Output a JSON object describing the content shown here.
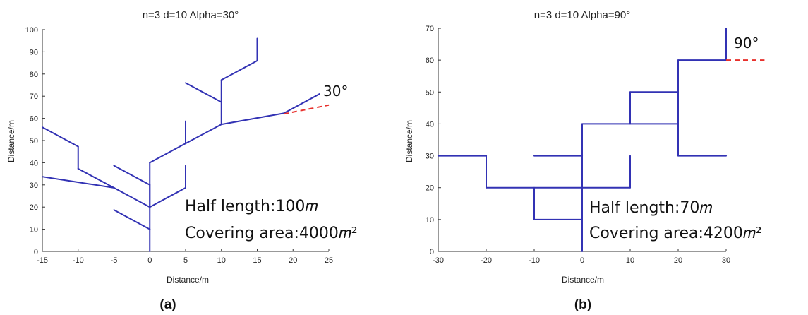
{
  "colors": {
    "line": "#3232b4",
    "reference": "#e8302c",
    "axis": "#333333"
  },
  "chart_data": [
    {
      "type": "line",
      "panel_label": "(a)",
      "title": "n=3 d=10 Alpha=30°",
      "xlabel": "Distance/m",
      "ylabel": "Distance/m",
      "xlim": [
        -15,
        25
      ],
      "ylim": [
        0,
        100
      ],
      "xticks": [
        "-15",
        "-10",
        "-5",
        "0",
        "5",
        "10",
        "15",
        "20",
        "25"
      ],
      "yticks": [
        "0",
        "10",
        "20",
        "30",
        "40",
        "50",
        "60",
        "70",
        "80",
        "90",
        "100"
      ],
      "grid": false,
      "annotations": {
        "length": "Half length:100𝑚",
        "area": "Covering area:4000𝑚²",
        "angle": "30°"
      },
      "reference_line": [
        [
          18.7,
          62
        ],
        [
          25,
          66
        ]
      ],
      "segments": [
        [
          [
            0,
            0
          ],
          [
            0,
            10
          ]
        ],
        [
          [
            0,
            10
          ],
          [
            -5,
            18.7
          ]
        ],
        [
          [
            0,
            10
          ],
          [
            0,
            20
          ]
        ],
        [
          [
            0,
            20
          ],
          [
            -5,
            28.7
          ]
        ],
        [
          [
            0,
            20
          ],
          [
            5,
            28.7
          ]
        ],
        [
          [
            0,
            20
          ],
          [
            0,
            30
          ]
        ],
        [
          [
            0,
            30
          ],
          [
            -5,
            38.7
          ]
        ],
        [
          [
            0,
            20
          ],
          [
            0,
            40
          ]
        ],
        [
          [
            0,
            40
          ],
          [
            5,
            48.7
          ]
        ],
        [
          [
            5,
            28.7
          ],
          [
            5,
            38.7
          ]
        ],
        [
          [
            5,
            48.7
          ],
          [
            5,
            58.7
          ]
        ],
        [
          [
            5,
            48.7
          ],
          [
            10,
            57.3
          ]
        ],
        [
          [
            10,
            57.3
          ],
          [
            18.7,
            62.3
          ]
        ],
        [
          [
            18.7,
            62.3
          ],
          [
            23.7,
            71
          ]
        ],
        [
          [
            10,
            57.3
          ],
          [
            10,
            67.3
          ]
        ],
        [
          [
            10,
            67.3
          ],
          [
            5,
            76
          ]
        ],
        [
          [
            10,
            67.3
          ],
          [
            10,
            77.3
          ]
        ],
        [
          [
            10,
            77.3
          ],
          [
            15,
            86
          ]
        ],
        [
          [
            15,
            86
          ],
          [
            15,
            96
          ]
        ],
        [
          [
            -5,
            28.7
          ],
          [
            -15,
            33.7
          ]
        ],
        [
          [
            -5,
            28.7
          ],
          [
            -10,
            37.3
          ]
        ],
        [
          [
            -10,
            37.3
          ],
          [
            -10,
            47.3
          ]
        ],
        [
          [
            -10,
            47.3
          ],
          [
            -15,
            56
          ]
        ]
      ]
    },
    {
      "type": "line",
      "panel_label": "(b)",
      "title": "n=3 d=10 Alpha=90°",
      "xlabel": "Distance/m",
      "ylabel": "Distance/m",
      "xlim": [
        -30,
        30
      ],
      "ylim": [
        0,
        70
      ],
      "xticks": [
        "-30",
        "-20",
        "-10",
        "0",
        "10",
        "20",
        "30"
      ],
      "yticks": [
        "0",
        "10",
        "20",
        "30",
        "40",
        "50",
        "60",
        "70"
      ],
      "grid": false,
      "annotations": {
        "length": "Half length:70𝑚",
        "area": "Covering area:4200𝑚²",
        "angle": "90°"
      },
      "reference_line": [
        [
          30,
          60
        ],
        [
          38,
          60
        ]
      ],
      "segments": [
        [
          [
            0,
            0
          ],
          [
            0,
            40
          ]
        ],
        [
          [
            0,
            10
          ],
          [
            -10,
            10
          ]
        ],
        [
          [
            -10,
            10
          ],
          [
            -10,
            20
          ]
        ],
        [
          [
            0,
            20
          ],
          [
            -20,
            20
          ]
        ],
        [
          [
            -20,
            20
          ],
          [
            -20,
            30
          ]
        ],
        [
          [
            -20,
            30
          ],
          [
            -30,
            30
          ]
        ],
        [
          [
            0,
            30
          ],
          [
            -10,
            30
          ]
        ],
        [
          [
            0,
            20
          ],
          [
            10,
            20
          ]
        ],
        [
          [
            10,
            20
          ],
          [
            10,
            30
          ]
        ],
        [
          [
            0,
            40
          ],
          [
            20,
            40
          ]
        ],
        [
          [
            10,
            40
          ],
          [
            10,
            50
          ]
        ],
        [
          [
            10,
            50
          ],
          [
            20,
            50
          ]
        ],
        [
          [
            20,
            40
          ],
          [
            20,
            30
          ]
        ],
        [
          [
            20,
            30
          ],
          [
            30,
            30
          ]
        ],
        [
          [
            20,
            40
          ],
          [
            20,
            60
          ]
        ],
        [
          [
            20,
            60
          ],
          [
            30,
            60
          ]
        ],
        [
          [
            30,
            60
          ],
          [
            30,
            70
          ]
        ]
      ]
    }
  ]
}
